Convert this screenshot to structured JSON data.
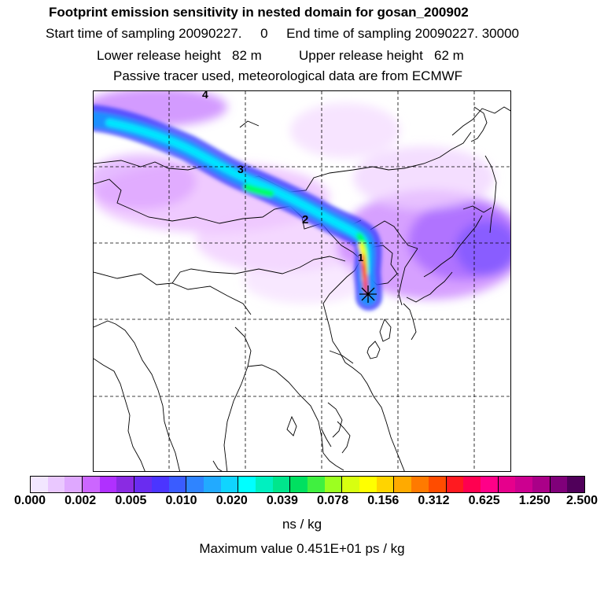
{
  "header": {
    "title": "Footprint emission sensitivity in nested domain for gosan_200902",
    "line2": "Start time of sampling 20090227.     0     End time of sampling 20090227. 30000",
    "line3": "Lower release height   82 m          Upper release height   62 m",
    "line4": "Passive tracer used, meteorological data are from ECMWF"
  },
  "map": {
    "day_markers": [
      "4",
      "3",
      "2",
      "1"
    ],
    "receptor": "gosan",
    "plume_colors": [
      "#1e90ff",
      "#00e5ff",
      "#00ff66",
      "#ffff00",
      "#ff8800",
      "#ff0000"
    ]
  },
  "colorbar": {
    "colors": [
      "#f2e6ff",
      "#eac8ff",
      "#dfa8ff",
      "#cc66ff",
      "#b030ff",
      "#8a2be2",
      "#6a2cf0",
      "#4b35ff",
      "#3a5cff",
      "#2f84ff",
      "#22aaff",
      "#10d4ff",
      "#00ffff",
      "#00f0c0",
      "#00e68c",
      "#00e060",
      "#40f040",
      "#9cff20",
      "#d8ff10",
      "#ffff00",
      "#ffd400",
      "#ffaa00",
      "#ff7a00",
      "#ff4c00",
      "#ff1a20",
      "#ff0050",
      "#ff0088",
      "#e6008c",
      "#cc0090",
      "#aa0088",
      "#80007a",
      "#50005a"
    ],
    "ticks": [
      "0.000",
      "0.002",
      "0.005",
      "0.010",
      "0.020",
      "0.039",
      "0.078",
      "0.156",
      "0.312",
      "0.625",
      "1.250",
      "2.500"
    ],
    "unit": "ns / kg"
  },
  "footer": {
    "max_value": "Maximum value  0.451E+01 ps / kg"
  }
}
